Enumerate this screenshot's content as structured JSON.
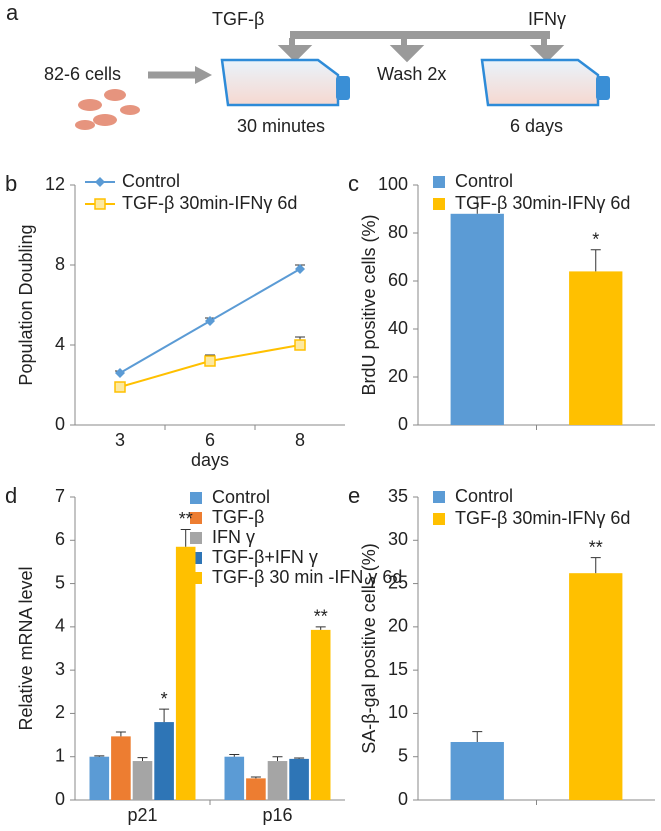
{
  "schematic": {
    "panel": "a",
    "treatments": [
      "TGF-β",
      "IFNγ"
    ],
    "cells": "82-6 cells",
    "wash": "Wash 2x",
    "durations": [
      "30 minutes",
      "6 days"
    ]
  },
  "chart_data": [
    {
      "type": "line",
      "panel": "b",
      "y_label": "Population Doubling",
      "x_label": "days",
      "categories": [
        "3",
        "6",
        "8"
      ],
      "ylim": [
        0,
        12
      ],
      "yticks": [
        0,
        4,
        8,
        12
      ],
      "series": [
        {
          "name": "Control",
          "color": "#5b9bd5",
          "marker": "diamond",
          "values": [
            2.6,
            5.2,
            7.8
          ],
          "errors": [
            0.1,
            0.15,
            0.2
          ]
        },
        {
          "name": "TGF-β 30min-IFNγ 6d",
          "color": "#ffc000",
          "marker": "square",
          "values": [
            1.9,
            3.2,
            4.0
          ],
          "errors": [
            0.1,
            0.3,
            0.4
          ]
        }
      ]
    },
    {
      "type": "bar",
      "panel": "c",
      "y_label": "BrdU positive cells (%)",
      "ylim": [
        0,
        100
      ],
      "yticks": [
        0,
        20,
        40,
        60,
        80,
        100
      ],
      "series": [
        {
          "name": "Control",
          "color": "#5b9bd5",
          "values": [
            88
          ],
          "errors": [
            7
          ],
          "significance": [
            null
          ]
        },
        {
          "name": "TGF-β 30min-IFNγ 6d",
          "color": "#ffc000",
          "values": [
            64
          ],
          "errors": [
            9
          ],
          "significance": [
            "*"
          ]
        }
      ]
    },
    {
      "type": "bar",
      "panel": "d",
      "y_label": "Relative mRNA level",
      "categories": [
        "p21",
        "p16"
      ],
      "ylim": [
        0,
        7
      ],
      "yticks": [
        0,
        1,
        2,
        3,
        4,
        5,
        6,
        7
      ],
      "series": [
        {
          "name": "Control",
          "color": "#5b9bd5",
          "values": [
            1.0,
            1.0
          ],
          "errors": [
            0.02,
            0.05
          ],
          "significance": [
            null,
            null
          ]
        },
        {
          "name": "TGF-β",
          "color": "#ed7d31",
          "values": [
            1.47,
            0.5
          ],
          "errors": [
            0.1,
            0.03
          ],
          "significance": [
            null,
            null
          ]
        },
        {
          "name": "IFN γ",
          "color": "#a5a5a5",
          "values": [
            0.9,
            0.9
          ],
          "errors": [
            0.08,
            0.1
          ],
          "significance": [
            null,
            null
          ]
        },
        {
          "name": "TGF-β+IFN γ",
          "color": "#2e75b6",
          "values": [
            1.8,
            0.95
          ],
          "errors": [
            0.3,
            0.02
          ],
          "significance": [
            "*",
            null
          ]
        },
        {
          "name": "TGF-β 30 min -IFN γ 6d",
          "color": "#ffc000",
          "values": [
            5.85,
            3.93
          ],
          "errors": [
            0.4,
            0.07
          ],
          "significance": [
            "**",
            "**"
          ]
        }
      ]
    },
    {
      "type": "bar",
      "panel": "e",
      "y_label": "SA-β-gal positive cells (%)",
      "ylim": [
        0,
        35
      ],
      "yticks": [
        0,
        5,
        10,
        15,
        20,
        25,
        30,
        35
      ],
      "series": [
        {
          "name": "Control",
          "color": "#5b9bd5",
          "values": [
            6.7
          ],
          "errors": [
            1.2
          ],
          "significance": [
            null
          ]
        },
        {
          "name": "TGF-β 30min-IFNγ 6d",
          "color": "#ffc000",
          "values": [
            26.2
          ],
          "errors": [
            1.8
          ],
          "significance": [
            "**"
          ]
        }
      ]
    }
  ]
}
